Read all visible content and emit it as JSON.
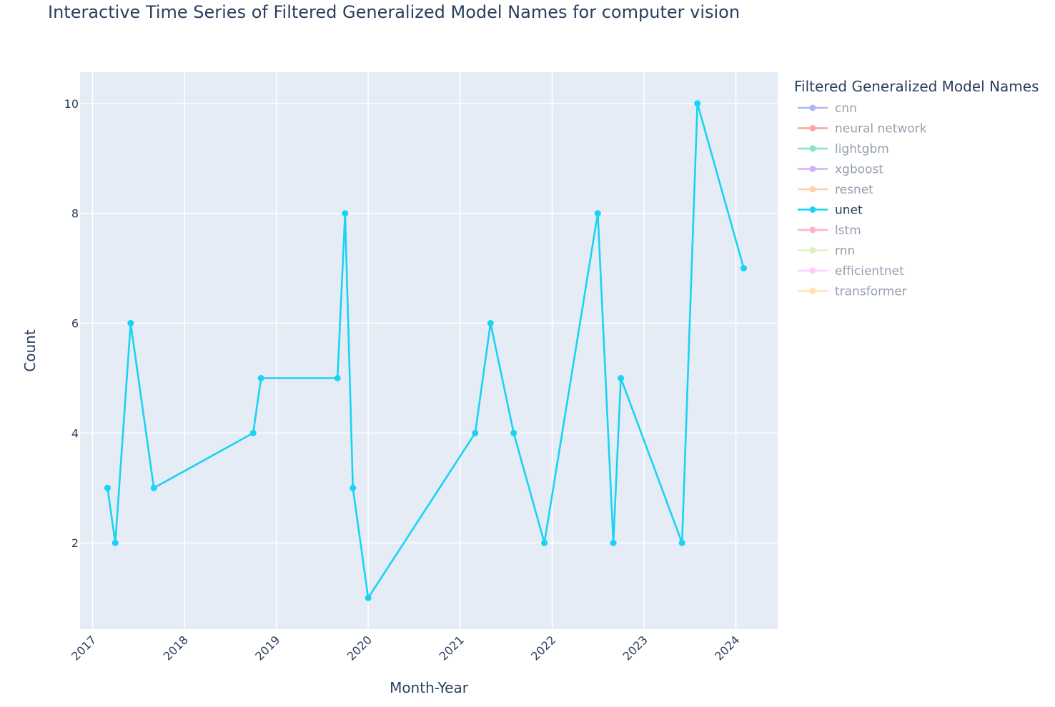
{
  "chart_data": {
    "type": "line",
    "title": "Interactive Time Series of Filtered Generalized Model Names for computer vision",
    "xlabel": "Month-Year",
    "ylabel": "Count",
    "x_axis_type": "date",
    "xlim": [
      "2016-11-12",
      "2024-06-15"
    ],
    "ylim": [
      0.43,
      10.57
    ],
    "x_ticks": [
      "2017",
      "2018",
      "2019",
      "2020",
      "2021",
      "2022",
      "2023",
      "2024"
    ],
    "y_ticks": [
      2,
      4,
      6,
      8,
      10
    ],
    "grid": true,
    "plot_background": "#e5ecf6",
    "legend": {
      "title": "Filtered Generalized Model Names",
      "placement": "right",
      "entries": [
        {
          "name": "cnn",
          "color": "#636efa",
          "active": false
        },
        {
          "name": "neural network",
          "color": "#ef553b",
          "active": false
        },
        {
          "name": "lightgbm",
          "color": "#00cc96",
          "active": false
        },
        {
          "name": "xgboost",
          "color": "#ab63fa",
          "active": false
        },
        {
          "name": "resnet",
          "color": "#ffa15a",
          "active": false
        },
        {
          "name": "unet",
          "color": "#19d3f3",
          "active": true
        },
        {
          "name": "lstm",
          "color": "#ff6692",
          "active": false
        },
        {
          "name": "rnn",
          "color": "#b6e880",
          "active": false
        },
        {
          "name": "efficientnet",
          "color": "#ff97ff",
          "active": false
        },
        {
          "name": "transformer",
          "color": "#fecb52",
          "active": false
        }
      ]
    },
    "series": [
      {
        "name": "unet",
        "color": "#19d3f3",
        "x": [
          "2017-03",
          "2017-04",
          "2017-06",
          "2017-09",
          "2018-10",
          "2018-11",
          "2019-09",
          "2019-10",
          "2019-11",
          "2020-01",
          "2021-03",
          "2021-05",
          "2021-08",
          "2021-12",
          "2022-07",
          "2022-09",
          "2022-10",
          "2023-06",
          "2023-08",
          "2024-02"
        ],
        "y": [
          3,
          2,
          6,
          3,
          4,
          5,
          5,
          8,
          3,
          1,
          4,
          6,
          4,
          2,
          8,
          2,
          5,
          2,
          10,
          7
        ]
      }
    ]
  }
}
